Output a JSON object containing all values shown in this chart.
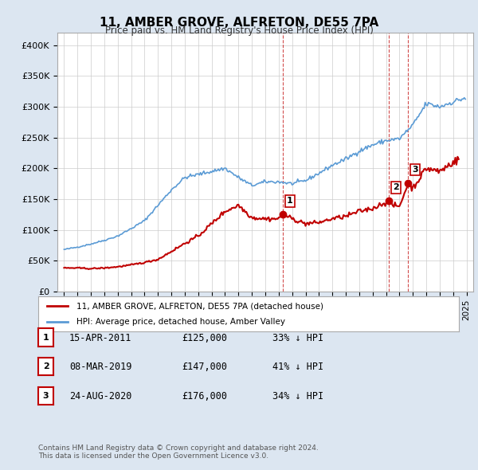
{
  "title": "11, AMBER GROVE, ALFRETON, DE55 7PA",
  "subtitle": "Price paid vs. HM Land Registry's House Price Index (HPI)",
  "legend_line1": "11, AMBER GROVE, ALFRETON, DE55 7PA (detached house)",
  "legend_line2": "HPI: Average price, detached house, Amber Valley",
  "footnote": "Contains HM Land Registry data © Crown copyright and database right 2024.\nThis data is licensed under the Open Government Licence v3.0.",
  "transactions": [
    {
      "num": 1,
      "date": "15-APR-2011",
      "price": "£125,000",
      "pct": "33% ↓ HPI",
      "year": 2011.29
    },
    {
      "num": 2,
      "date": "08-MAR-2019",
      "price": "£147,000",
      "pct": "41% ↓ HPI",
      "year": 2019.19
    },
    {
      "num": 3,
      "date": "24-AUG-2020",
      "price": "£176,000",
      "pct": "34% ↓ HPI",
      "year": 2020.65
    }
  ],
  "hpi_color": "#5b9bd5",
  "price_color": "#c00000",
  "vline_color": "#c00000",
  "marker_color": "#c00000",
  "background_color": "#dce6f1",
  "plot_bg_color": "#ffffff",
  "ylim": [
    0,
    420000
  ],
  "yticks": [
    0,
    50000,
    100000,
    150000,
    200000,
    250000,
    300000,
    350000,
    400000
  ],
  "xlim_start": 1994.5,
  "xlim_end": 2025.5
}
